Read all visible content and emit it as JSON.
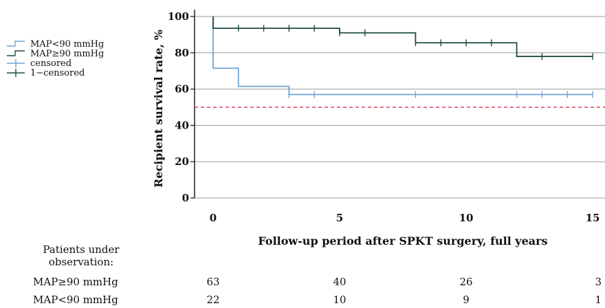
{
  "chart_data": {
    "type": "line",
    "xlabel": "Follow-up period after SPKT surgery, full years",
    "ylabel": "Recipient survival rate, %",
    "xlim": [
      0,
      15
    ],
    "ylim": [
      0,
      100
    ],
    "x_ticks": [
      0,
      5,
      10,
      15
    ],
    "y_ticks": [
      0,
      20,
      40,
      60,
      80,
      100
    ],
    "grid": "horizontal",
    "legend_position": "left",
    "reference_line": {
      "y": 50,
      "style": "dashed",
      "color": "#e0405a"
    },
    "series": [
      {
        "name": "MAP<90 mmHg",
        "color": "#6fa3d6",
        "step": [
          [
            0,
            100
          ],
          [
            0,
            71.5
          ],
          [
            1,
            71.5
          ],
          [
            1,
            61.5
          ],
          [
            3,
            61.5
          ],
          [
            3,
            57
          ],
          [
            15,
            57
          ]
        ],
        "censored": [
          3,
          4,
          8,
          12,
          13,
          14,
          15
        ]
      },
      {
        "name": "MAP≥90 mmHg",
        "color": "#1f4a45",
        "step": [
          [
            0,
            100
          ],
          [
            0,
            93.5
          ],
          [
            5,
            93.5
          ],
          [
            5,
            91
          ],
          [
            8,
            91
          ],
          [
            8,
            85.5
          ],
          [
            12,
            85.5
          ],
          [
            12,
            78
          ],
          [
            15,
            78
          ]
        ],
        "censored": [
          1,
          2,
          3,
          4,
          5,
          6,
          8,
          9,
          10,
          11,
          13,
          15
        ]
      }
    ]
  },
  "legend": {
    "items": [
      {
        "label": "MAP<90 mmHg",
        "kind": "step",
        "color": "#6fa3d6"
      },
      {
        "label": "MAP≥90 mmHg",
        "kind": "step",
        "color": "#1f4a45"
      },
      {
        "label": "censored",
        "kind": "cross",
        "color": "#6fa3d6"
      },
      {
        "label": "1−censored",
        "kind": "cross",
        "color": "#1f4a45"
      }
    ]
  },
  "risk_table": {
    "title_line1": "Patients under",
    "title_line2": "observation:",
    "x_values": [
      0,
      5,
      10,
      15
    ],
    "rows": [
      {
        "label": "MAP≥90 mmHg",
        "values": [
          "63",
          "40",
          "26",
          "3"
        ]
      },
      {
        "label": "MAP<90 mmHg",
        "values": [
          "22",
          "10",
          "9",
          "1"
        ]
      }
    ]
  }
}
